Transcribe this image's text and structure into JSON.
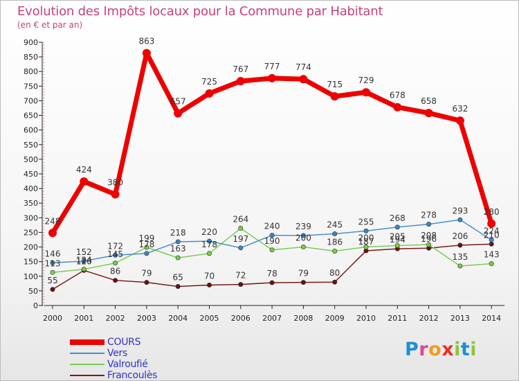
{
  "title": "Evolution des Impôts locaux pour la Commune par Habitant",
  "subtitle": "(en € et par an)",
  "logo": {
    "text": "Proxiti",
    "letters": [
      {
        "char": "P",
        "color": "#1f8fd6"
      },
      {
        "char": "r",
        "color": "#e0478c"
      },
      {
        "char": "o",
        "color": "#f29a1f"
      },
      {
        "char": "x",
        "color": "#e8312b"
      },
      {
        "char": "i",
        "color": "#8cc63f"
      },
      {
        "char": "t",
        "color": "#1f8fd6"
      },
      {
        "char": "i",
        "color": "#8cc63f"
      }
    ]
  },
  "chart_data": {
    "type": "line",
    "title": "Evolution des Impôts locaux pour la Commune par Habitant",
    "subtitle": "(en € et par an)",
    "xlabel": "",
    "ylabel": "",
    "x": [
      "2000",
      "2001",
      "2002",
      "2003",
      "2004",
      "2005",
      "2006",
      "2007",
      "2008",
      "2009",
      "2010",
      "2011",
      "2012",
      "2013",
      "2014"
    ],
    "ylim": [
      0,
      900
    ],
    "yticks": [
      0,
      50,
      100,
      150,
      200,
      250,
      300,
      350,
      400,
      450,
      500,
      550,
      600,
      650,
      700,
      750,
      800,
      850,
      900
    ],
    "grid": false,
    "legend_position": "bottom-left",
    "series": [
      {
        "name": "COURS",
        "color": "#ee0000",
        "label_color": "#3333cc",
        "marker": "#ee0000",
        "values": [
          248,
          424,
          380,
          863,
          657,
          725,
          767,
          777,
          774,
          715,
          729,
          678,
          658,
          632,
          280
        ]
      },
      {
        "name": "Vers",
        "color": "#4a90c8",
        "label_color": "#3333cc",
        "marker": "#3a86c4",
        "values": [
          146,
          152,
          172,
          178,
          218,
          220,
          197,
          240,
          239,
          245,
          255,
          268,
          278,
          293,
          224
        ]
      },
      {
        "name": "Valroufié",
        "color": "#7acc55",
        "label_color": "#3333cc",
        "marker": "#7acc44",
        "values": [
          113,
          124,
          145,
          199,
          163,
          178,
          264,
          190,
          200,
          186,
          200,
          205,
          208,
          135,
          143
        ]
      },
      {
        "name": "Francoulès",
        "color": "#7a1a1a",
        "label_color": "#3333cc",
        "marker": "#6a1010",
        "values": [
          55,
          120,
          86,
          79,
          65,
          70,
          72,
          78,
          79,
          80,
          187,
          194,
          196,
          206,
          210
        ]
      }
    ]
  }
}
